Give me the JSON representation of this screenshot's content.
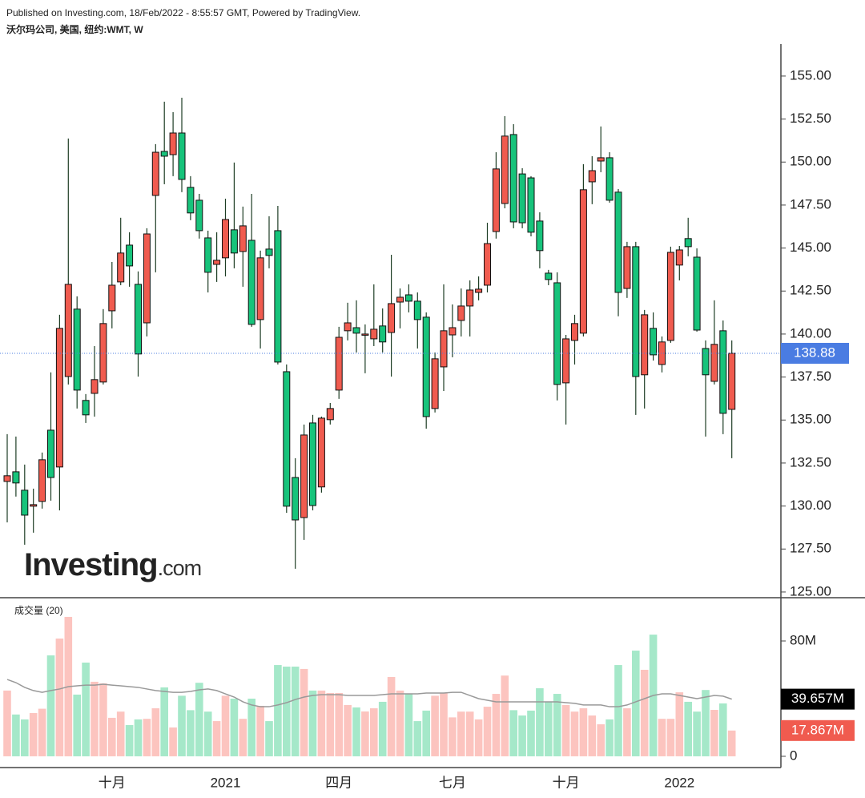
{
  "chart_data": [
    {
      "type": "candlestick",
      "title": "沃尔玛公司, 美国, 纽约:WMT, W",
      "subtitle": "Published on Investing.com, 18/Feb/2022 - 8:55:57 GMT, Powered by TradingView.",
      "annotations": [
        "Investing",
        ".com"
      ],
      "categories": [
        null,
        null,
        null,
        null,
        null,
        null,
        null,
        null,
        null,
        null,
        null,
        null,
        "十月",
        null,
        null,
        null,
        null,
        null,
        null,
        null,
        null,
        null,
        null,
        null,
        null,
        "2021",
        null,
        null,
        null,
        null,
        null,
        null,
        null,
        null,
        null,
        null,
        null,
        null,
        "四月",
        null,
        null,
        null,
        null,
        null,
        null,
        null,
        null,
        null,
        null,
        null,
        null,
        "七月",
        null,
        null,
        null,
        null,
        null,
        null,
        null,
        null,
        null,
        null,
        null,
        null,
        "十月",
        null,
        null,
        null,
        null,
        null,
        null,
        null,
        null,
        null,
        null,
        null,
        null,
        "2022",
        null,
        null,
        null,
        null,
        null,
        null
      ],
      "open": [
        131.43,
        131.99,
        130.92,
        129.99,
        130.27,
        134.41,
        132.27,
        137.53,
        141.45,
        136.14,
        136.55,
        137.21,
        141.35,
        143.03,
        145.17,
        142.89,
        140.65,
        148.06,
        150.62,
        150.43,
        151.69,
        148.53,
        147.78,
        145.59,
        144.05,
        144.43,
        146.06,
        144.8,
        145.45,
        140.84,
        144.94,
        146.01,
        137.81,
        131.66,
        129.33,
        134.83,
        131.11,
        135.02,
        136.74,
        140.19,
        140.37,
        139.95,
        139.72,
        140.47,
        140.09,
        141.86,
        142.28,
        141.91,
        140.98,
        135.67,
        138.09,
        139.95,
        140.79,
        141.63,
        142.42,
        142.84,
        145.96,
        147.59,
        151.6,
        149.31,
        149.08,
        146.57,
        143.54,
        142.98,
        137.16,
        139.63,
        140.05,
        148.85,
        150.06,
        150.25,
        148.25,
        142.65,
        145.08,
        137.63,
        140.33,
        138.23,
        139.63,
        144.01,
        145.55,
        144.47,
        139.16,
        137.25,
        140.19,
        135.62
      ],
      "high": [
        134.18,
        134.04,
        132.41,
        131.01,
        133.11,
        137.77,
        141.12,
        151.37,
        142.19,
        136.51,
        139.3,
        141.45,
        144.19,
        146.76,
        145.92,
        143.64,
        146.15,
        151.04,
        153.51,
        152.9,
        153.74,
        149.18,
        148.15,
        146.01,
        145.92,
        147.87,
        149.97,
        147.41,
        148.15,
        144.85,
        146.85,
        147.45,
        138.23,
        132.78,
        134.74,
        135.3,
        135.2,
        135.99,
        140.42,
        141.82,
        141.96,
        140.56,
        142.89,
        141.49,
        144.61,
        142.65,
        142.89,
        142.42,
        141.26,
        138.93,
        142.89,
        141.72,
        142.65,
        143.12,
        143.35,
        146.47,
        150.57,
        152.67,
        152.2,
        149.64,
        149.18,
        147.08,
        143.73,
        143.59,
        139.95,
        141.12,
        149.88,
        150.34,
        152.07,
        150.57,
        148.43,
        145.36,
        145.36,
        141.4,
        141.26,
        139.86,
        145.08,
        145.12,
        146.76,
        144.98,
        139.63,
        141.96,
        140.79,
        139.63
      ],
      "low": [
        129.05,
        130.55,
        127.75,
        128.45,
        129.85,
        130.31,
        129.75,
        137.07,
        135.67,
        134.83,
        135.2,
        137.07,
        140.33,
        142.84,
        142.75,
        137.53,
        139.86,
        143.59,
        148.71,
        149.18,
        148.25,
        146.62,
        145.55,
        142.42,
        143.03,
        143.35,
        143.82,
        142.75,
        140.42,
        139.16,
        143.82,
        138.23,
        129.61,
        126.35,
        128.03,
        129.75,
        130.78,
        134.74,
        136.23,
        139.63,
        138.93,
        137.72,
        139.3,
        138.93,
        137.53,
        140.33,
        141.26,
        139.16,
        134.5,
        135.44,
        136.69,
        138.65,
        139.86,
        139.86,
        141.96,
        142.42,
        145.55,
        147.31,
        146.15,
        146.15,
        145.68,
        143.82,
        142.84,
        136.14,
        134.74,
        138.23,
        139.86,
        147.55,
        149.41,
        147.64,
        141.03,
        142.1,
        135.3,
        135.67,
        138.46,
        137.77,
        139.49,
        143.12,
        144.52,
        140.14,
        134.04,
        137.07,
        134.18,
        132.78
      ],
      "close": [
        131.76,
        131.34,
        129.47,
        130.08,
        132.69,
        131.66,
        140.33,
        142.89,
        136.74,
        135.3,
        137.35,
        140.61,
        142.84,
        144.71,
        143.96,
        138.84,
        145.82,
        150.57,
        150.34,
        151.69,
        148.99,
        147.04,
        146.01,
        143.59,
        144.29,
        146.66,
        144.71,
        146.29,
        140.56,
        144.43,
        144.57,
        138.37,
        129.99,
        129.19,
        134.13,
        130.03,
        135.11,
        135.67,
        139.81,
        140.65,
        140.05,
        140.0,
        140.28,
        139.54,
        141.77,
        142.14,
        141.91,
        140.84,
        135.2,
        138.56,
        140.19,
        140.37,
        141.63,
        142.56,
        142.61,
        145.26,
        149.6,
        151.51,
        146.52,
        146.47,
        145.92,
        144.85,
        143.17,
        137.07,
        139.72,
        140.61,
        148.39,
        149.5,
        150.25,
        147.78,
        142.42,
        145.08,
        137.53,
        141.12,
        138.79,
        139.54,
        144.75,
        144.89,
        145.08,
        140.23,
        137.63,
        139.4,
        135.39,
        138.88
      ],
      "up_color": "#f05b4f",
      "down_color": "#17c37b",
      "last_price_color": "#4a7ce2",
      "ylim": [
        124.67,
        156.86
      ],
      "yticks": [
        {
          "value": 125,
          "label": "125.00"
        },
        {
          "value": 127.5,
          "label": "127.50"
        },
        {
          "value": 130,
          "label": "130.00"
        },
        {
          "value": 132.5,
          "label": "132.50"
        },
        {
          "value": 135,
          "label": "135.00"
        },
        {
          "value": 137.5,
          "label": "137.50"
        },
        {
          "value": 140,
          "label": "140.00"
        },
        {
          "value": 142.5,
          "label": "142.50"
        },
        {
          "value": 145,
          "label": "145.00"
        },
        {
          "value": 147.5,
          "label": "147.50"
        },
        {
          "value": 150,
          "label": "150.00"
        },
        {
          "value": 152.5,
          "label": "152.50"
        },
        {
          "value": 155,
          "label": "155.00"
        }
      ]
    },
    {
      "type": "bar",
      "title": "成交量 (20)",
      "up_color": "#fcc4bf",
      "down_color": "#a5e8c9",
      "series": [
        {
          "type": "bar",
          "color": "#f05b4f",
          "values": [
            45.6,
            29,
            25.6,
            30,
            33,
            70,
            81.7,
            96.7,
            42.8,
            65,
            51.7,
            50.6,
            26.7,
            31,
            21.7,
            25.6,
            26,
            33.3,
            47.8,
            20,
            42,
            32,
            51,
            31,
            24.4,
            42,
            40,
            26,
            40,
            35,
            24.4,
            63.3,
            62.2,
            62.2,
            60.6,
            45.6,
            45.6,
            43.9,
            43.9,
            35.6,
            33.9,
            31.1,
            33.3,
            37.8,
            55,
            45.6,
            43.3,
            24.4,
            31.7,
            42,
            43.9,
            27,
            31,
            31,
            25.6,
            34.4,
            43.3,
            56,
            32,
            28.3,
            31.7,
            47.2,
            37.8,
            43.3,
            35.6,
            31,
            33.3,
            28.3,
            22.2,
            25.6,
            63.3,
            33.3,
            73.3,
            60,
            84.4,
            26,
            26,
            44.4,
            37.8,
            31,
            46,
            32.2,
            36.7,
            17.867
          ],
          "value_labels": [
            null,
            null,
            null,
            null,
            null,
            null,
            null,
            null,
            null,
            null,
            null,
            null,
            null,
            null,
            null,
            null,
            null,
            null,
            null,
            null,
            null,
            null,
            null,
            null,
            null,
            null,
            null,
            null,
            null,
            null,
            null,
            null,
            null,
            null,
            null,
            null,
            null,
            null,
            null,
            null,
            null,
            null,
            null,
            null,
            null,
            null,
            null,
            null,
            null,
            null,
            null,
            null,
            null,
            null,
            null,
            null,
            null,
            null,
            null,
            null,
            null,
            null,
            null,
            null,
            null,
            null,
            null,
            null,
            null,
            null,
            null,
            null,
            null,
            null,
            null,
            null,
            null,
            null,
            null,
            null,
            null,
            null,
            null,
            "17.867M"
          ]
        },
        {
          "type": "line",
          "color": "#999999",
          "values": [
            53.3,
            51.1,
            47.8,
            45.6,
            44.4,
            45.6,
            46.7,
            48.3,
            48.9,
            49.4,
            49.4,
            50,
            49.4,
            48.9,
            48.3,
            47.8,
            46.7,
            45.6,
            45,
            44.4,
            44.4,
            45,
            46.1,
            46.7,
            45.6,
            43.3,
            41.1,
            37.8,
            35.6,
            34.4,
            34.4,
            35.6,
            37.2,
            39.4,
            41.1,
            42.2,
            42.8,
            42.8,
            42.8,
            42.2,
            42.2,
            42.2,
            42.2,
            42.8,
            43.3,
            43.3,
            43.3,
            43.3,
            43.9,
            43.9,
            43.9,
            44.4,
            44.4,
            42.2,
            40,
            38.9,
            37.8,
            37.8,
            37.8,
            37.8,
            37.8,
            37.8,
            37.8,
            37.8,
            37.2,
            36.7,
            35.6,
            35.6,
            35.6,
            34.4,
            34.4,
            35.6,
            37.8,
            40,
            42.2,
            43.3,
            43.3,
            42.2,
            41.1,
            40,
            41.1,
            42.2,
            41.7,
            39.657
          ],
          "value_labels": [
            null,
            null,
            null,
            null,
            null,
            null,
            null,
            null,
            null,
            null,
            null,
            null,
            null,
            null,
            null,
            null,
            null,
            null,
            null,
            null,
            null,
            null,
            null,
            null,
            null,
            null,
            null,
            null,
            null,
            null,
            null,
            null,
            null,
            null,
            null,
            null,
            null,
            null,
            null,
            null,
            null,
            null,
            null,
            null,
            null,
            null,
            null,
            null,
            null,
            null,
            null,
            null,
            null,
            null,
            null,
            null,
            null,
            null,
            null,
            null,
            null,
            null,
            null,
            null,
            null,
            null,
            null,
            null,
            null,
            null,
            null,
            null,
            null,
            null,
            null,
            null,
            null,
            null,
            null,
            null,
            null,
            null,
            null,
            "39.657M"
          ]
        }
      ],
      "ylim": [
        -7.8,
        108.9
      ],
      "yticks": [
        0,
        {
          "value": 80,
          "label": "80M"
        }
      ]
    }
  ]
}
